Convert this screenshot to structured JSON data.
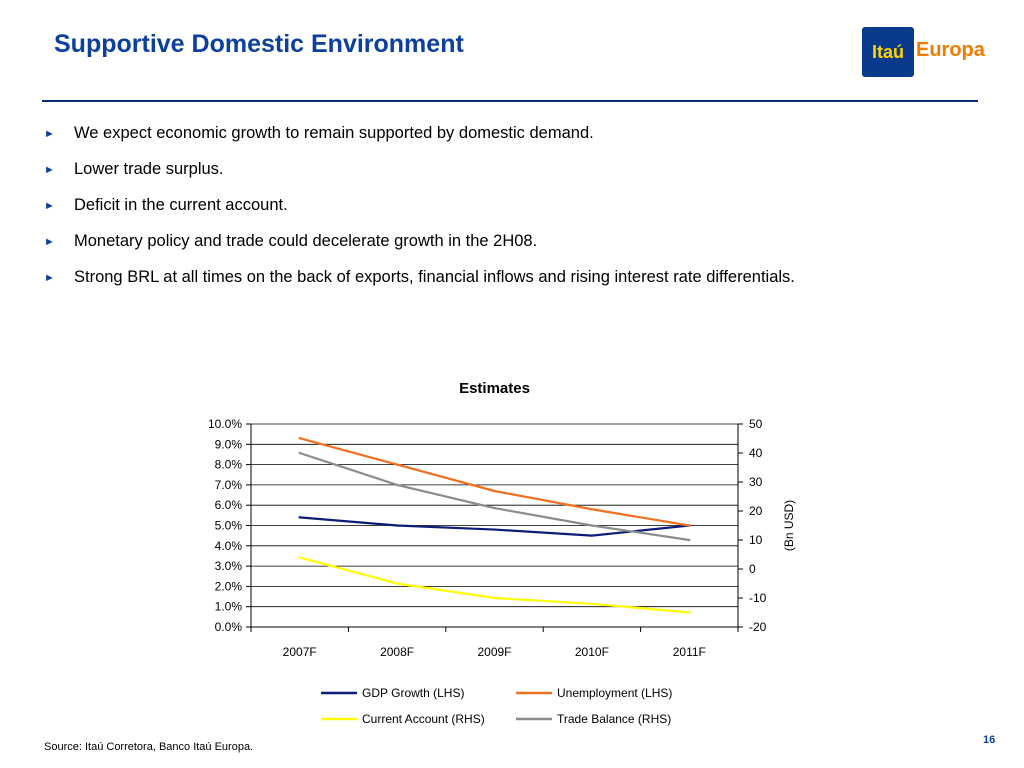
{
  "slide": {
    "title": "Supportive Domestic Environment",
    "logo": {
      "primary": "Itaú",
      "secondary": "Europa"
    },
    "bullets": [
      "We expect economic growth to remain supported by domestic demand.",
      "Lower trade surplus.",
      "Deficit in the current account.",
      "Monetary policy and trade could decelerate growth in the 2H08.",
      "Strong BRL at all times on the back of exports, financial inflows and rising interest rate differentials."
    ],
    "source": "Source: Itaú Corretora, Banco Itaú Europa.",
    "page_number": "16"
  },
  "chart_data": {
    "type": "line",
    "title": "Estimates",
    "categories": [
      "2007F",
      "2008F",
      "2009F",
      "2010F",
      "2011F"
    ],
    "y_left": {
      "min": 0,
      "max": 10,
      "step": 1,
      "tick_labels": [
        "0.0%",
        "1.0%",
        "2.0%",
        "3.0%",
        "4.0%",
        "5.0%",
        "6.0%",
        "7.0%",
        "8.0%",
        "9.0%",
        "10.0%"
      ]
    },
    "y_right": {
      "min": -20,
      "max": 50,
      "step": 10,
      "tick_labels": [
        "-20",
        "-10",
        "0",
        "10",
        "20",
        "30",
        "40",
        "50"
      ],
      "label": "(Bn USD)"
    },
    "grid": true,
    "legend_position": "bottom",
    "series": [
      {
        "name": "GDP Growth (LHS)",
        "axis": "left",
        "color": "#0a1e78",
        "values": [
          5.4,
          5.0,
          4.8,
          4.5,
          5.0
        ]
      },
      {
        "name": "Unemployment (LHS)",
        "axis": "left",
        "color": "#f07020",
        "values": [
          9.3,
          8.0,
          6.7,
          5.8,
          5.0
        ]
      },
      {
        "name": "Current Account (RHS)",
        "axis": "right",
        "color": "#ffff00",
        "values": [
          4,
          -5,
          -10,
          -12,
          -15
        ]
      },
      {
        "name": "Trade Balance (RHS)",
        "axis": "right",
        "color": "#8c8c8c",
        "values": [
          40,
          29,
          21,
          15,
          10
        ]
      }
    ]
  }
}
